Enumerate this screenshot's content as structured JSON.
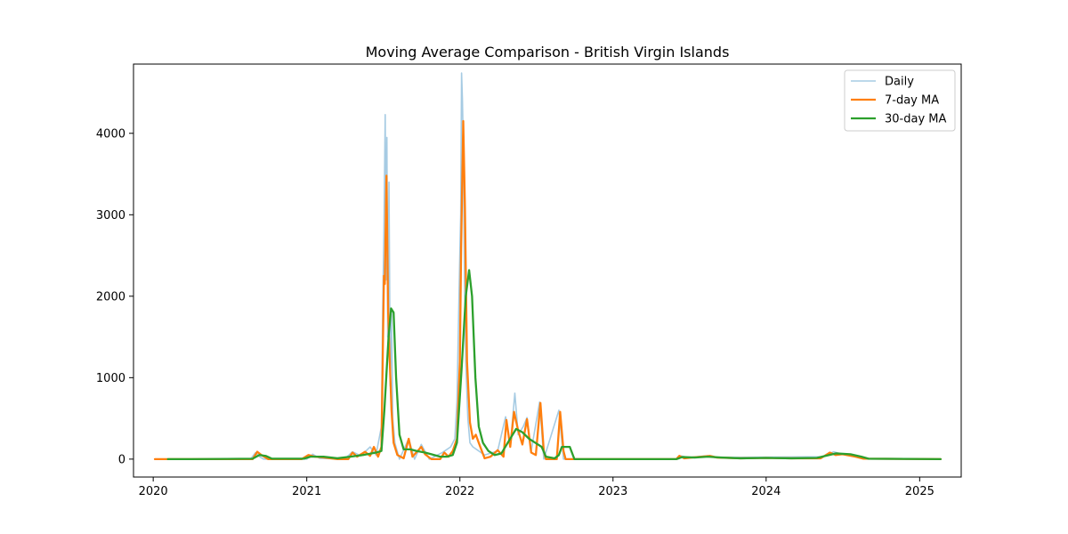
{
  "chart_data": {
    "type": "line",
    "title": "Moving Average Comparison - British Virgin Islands",
    "xlabel": "",
    "ylabel": "",
    "xlim": [
      "2019-11-15",
      "2025-04-10"
    ],
    "ylim": [
      -220,
      4850
    ],
    "x_ticks": [
      "2020-01-01",
      "2021-01-01",
      "2022-01-01",
      "2023-01-01",
      "2024-01-01",
      "2025-01-01"
    ],
    "x_tick_labels": [
      "2020",
      "2021",
      "2022",
      "2023",
      "2024",
      "2025"
    ],
    "y_ticks": [
      0,
      1000,
      2000,
      3000,
      4000
    ],
    "legend_position": "top-right",
    "grid": false,
    "series": [
      {
        "name": "Daily",
        "color": "#a6cbe3",
        "points": [
          [
            "2020-01-05",
            0
          ],
          [
            "2020-08-20",
            0
          ],
          [
            "2020-09-01",
            80
          ],
          [
            "2020-09-10",
            30
          ],
          [
            "2020-09-20",
            0
          ],
          [
            "2021-01-01",
            0
          ],
          [
            "2021-01-15",
            60
          ],
          [
            "2021-02-01",
            10
          ],
          [
            "2021-04-01",
            0
          ],
          [
            "2021-04-20",
            90
          ],
          [
            "2021-05-10",
            40
          ],
          [
            "2021-06-01",
            150
          ],
          [
            "2021-06-15",
            50
          ],
          [
            "2021-06-28",
            400
          ],
          [
            "2021-07-01",
            1850
          ],
          [
            "2021-07-04",
            2800
          ],
          [
            "2021-07-07",
            4230
          ],
          [
            "2021-07-09",
            2200
          ],
          [
            "2021-07-11",
            3950
          ],
          [
            "2021-07-13",
            1500
          ],
          [
            "2021-07-16",
            3400
          ],
          [
            "2021-07-19",
            900
          ],
          [
            "2021-07-22",
            1800
          ],
          [
            "2021-07-25",
            500
          ],
          [
            "2021-07-30",
            200
          ],
          [
            "2021-08-10",
            0
          ],
          [
            "2021-09-01",
            250
          ],
          [
            "2021-09-15",
            0
          ],
          [
            "2021-10-01",
            180
          ],
          [
            "2021-10-20",
            0
          ],
          [
            "2021-11-20",
            80
          ],
          [
            "2021-12-10",
            150
          ],
          [
            "2021-12-20",
            250
          ],
          [
            "2021-12-25",
            700
          ],
          [
            "2022-01-01",
            2550
          ],
          [
            "2022-01-03",
            3000
          ],
          [
            "2022-01-05",
            4740
          ],
          [
            "2022-01-07",
            4420
          ],
          [
            "2022-01-09",
            3900
          ],
          [
            "2022-01-12",
            2200
          ],
          [
            "2022-01-15",
            1200
          ],
          [
            "2022-01-20",
            500
          ],
          [
            "2022-01-25",
            200
          ],
          [
            "2022-02-01",
            150
          ],
          [
            "2022-03-01",
            50
          ],
          [
            "2022-04-01",
            100
          ],
          [
            "2022-04-20",
            520
          ],
          [
            "2022-05-01",
            150
          ],
          [
            "2022-05-12",
            810
          ],
          [
            "2022-05-20",
            300
          ],
          [
            "2022-06-01",
            400
          ],
          [
            "2022-06-10",
            510
          ],
          [
            "2022-06-20",
            100
          ],
          [
            "2022-07-10",
            700
          ],
          [
            "2022-07-20",
            0
          ],
          [
            "2022-08-25",
            600
          ],
          [
            "2022-09-05",
            0
          ],
          [
            "2023-06-05",
            0
          ],
          [
            "2023-06-10",
            40
          ],
          [
            "2023-07-01",
            20
          ],
          [
            "2023-08-15",
            40
          ],
          [
            "2023-09-01",
            20
          ],
          [
            "2024-05-15",
            30
          ],
          [
            "2024-06-10",
            90
          ],
          [
            "2024-07-01",
            60
          ],
          [
            "2024-08-15",
            20
          ],
          [
            "2024-09-01",
            0
          ],
          [
            "2025-02-20",
            0
          ]
        ]
      },
      {
        "name": "7-day MA",
        "color": "#ff7f0e",
        "points": [
          [
            "2020-01-05",
            0
          ],
          [
            "2020-08-25",
            0
          ],
          [
            "2020-09-05",
            90
          ],
          [
            "2020-09-15",
            50
          ],
          [
            "2020-10-01",
            0
          ],
          [
            "2020-12-20",
            0
          ],
          [
            "2021-01-05",
            50
          ],
          [
            "2021-01-20",
            30
          ],
          [
            "2021-02-10",
            20
          ],
          [
            "2021-03-15",
            0
          ],
          [
            "2021-04-10",
            0
          ],
          [
            "2021-04-20",
            80
          ],
          [
            "2021-05-01",
            30
          ],
          [
            "2021-05-20",
            90
          ],
          [
            "2021-06-01",
            40
          ],
          [
            "2021-06-10",
            150
          ],
          [
            "2021-06-20",
            30
          ],
          [
            "2021-06-28",
            150
          ],
          [
            "2021-07-04",
            2250
          ],
          [
            "2021-07-06",
            2150
          ],
          [
            "2021-07-10",
            3480
          ],
          [
            "2021-07-14",
            1800
          ],
          [
            "2021-07-18",
            1180
          ],
          [
            "2021-07-22",
            600
          ],
          [
            "2021-07-27",
            200
          ],
          [
            "2021-08-05",
            50
          ],
          [
            "2021-08-20",
            10
          ],
          [
            "2021-09-01",
            250
          ],
          [
            "2021-09-10",
            30
          ],
          [
            "2021-10-01",
            150
          ],
          [
            "2021-10-10",
            60
          ],
          [
            "2021-10-25",
            0
          ],
          [
            "2021-11-15",
            0
          ],
          [
            "2021-11-25",
            80
          ],
          [
            "2021-12-05",
            30
          ],
          [
            "2021-12-15",
            100
          ],
          [
            "2021-12-25",
            250
          ],
          [
            "2022-01-01",
            1200
          ],
          [
            "2022-01-04",
            2600
          ],
          [
            "2022-01-09",
            4150
          ],
          [
            "2022-01-13",
            3100
          ],
          [
            "2022-01-18",
            1200
          ],
          [
            "2022-01-25",
            450
          ],
          [
            "2022-02-01",
            250
          ],
          [
            "2022-02-08",
            300
          ],
          [
            "2022-02-15",
            200
          ],
          [
            "2022-03-01",
            10
          ],
          [
            "2022-03-15",
            30
          ],
          [
            "2022-04-01",
            110
          ],
          [
            "2022-04-15",
            30
          ],
          [
            "2022-04-22",
            480
          ],
          [
            "2022-05-01",
            150
          ],
          [
            "2022-05-10",
            580
          ],
          [
            "2022-05-20",
            350
          ],
          [
            "2022-05-30",
            180
          ],
          [
            "2022-06-10",
            490
          ],
          [
            "2022-06-20",
            80
          ],
          [
            "2022-07-01",
            50
          ],
          [
            "2022-07-12",
            690
          ],
          [
            "2022-07-20",
            100
          ],
          [
            "2022-07-25",
            0
          ],
          [
            "2022-08-20",
            0
          ],
          [
            "2022-08-28",
            580
          ],
          [
            "2022-09-05",
            100
          ],
          [
            "2022-09-10",
            0
          ],
          [
            "2023-06-01",
            0
          ],
          [
            "2023-06-08",
            40
          ],
          [
            "2023-06-20",
            10
          ],
          [
            "2023-07-10",
            20
          ],
          [
            "2023-08-20",
            40
          ],
          [
            "2023-09-05",
            20
          ],
          [
            "2023-11-01",
            10
          ],
          [
            "2024-01-01",
            15
          ],
          [
            "2024-03-01",
            10
          ],
          [
            "2024-05-10",
            10
          ],
          [
            "2024-06-01",
            80
          ],
          [
            "2024-06-15",
            50
          ],
          [
            "2024-07-01",
            60
          ],
          [
            "2024-08-01",
            30
          ],
          [
            "2024-08-20",
            5
          ],
          [
            "2025-02-20",
            0
          ]
        ]
      },
      {
        "name": "30-day MA",
        "color": "#2ca02c",
        "points": [
          [
            "2020-02-05",
            0
          ],
          [
            "2020-04-01",
            0
          ],
          [
            "2020-08-25",
            5
          ],
          [
            "2020-09-10",
            50
          ],
          [
            "2020-09-25",
            40
          ],
          [
            "2020-10-10",
            5
          ],
          [
            "2020-12-25",
            5
          ],
          [
            "2021-01-10",
            30
          ],
          [
            "2021-02-10",
            30
          ],
          [
            "2021-03-15",
            10
          ],
          [
            "2021-04-15",
            30
          ],
          [
            "2021-05-15",
            50
          ],
          [
            "2021-06-15",
            80
          ],
          [
            "2021-06-28",
            100
          ],
          [
            "2021-07-05",
            600
          ],
          [
            "2021-07-15",
            1500
          ],
          [
            "2021-07-21",
            1850
          ],
          [
            "2021-07-27",
            1800
          ],
          [
            "2021-08-02",
            1000
          ],
          [
            "2021-08-10",
            300
          ],
          [
            "2021-08-20",
            120
          ],
          [
            "2021-09-05",
            120
          ],
          [
            "2021-09-20",
            100
          ],
          [
            "2021-10-10",
            80
          ],
          [
            "2021-10-25",
            60
          ],
          [
            "2021-11-15",
            30
          ],
          [
            "2021-12-01",
            30
          ],
          [
            "2021-12-15",
            50
          ],
          [
            "2021-12-25",
            200
          ],
          [
            "2022-01-05",
            1100
          ],
          [
            "2022-01-15",
            2000
          ],
          [
            "2022-01-23",
            2320
          ],
          [
            "2022-01-30",
            2000
          ],
          [
            "2022-02-07",
            1000
          ],
          [
            "2022-02-15",
            400
          ],
          [
            "2022-02-25",
            200
          ],
          [
            "2022-03-10",
            100
          ],
          [
            "2022-03-25",
            50
          ],
          [
            "2022-04-10",
            70
          ],
          [
            "2022-04-25",
            200
          ],
          [
            "2022-05-15",
            370
          ],
          [
            "2022-05-30",
            330
          ],
          [
            "2022-06-15",
            250
          ],
          [
            "2022-06-30",
            200
          ],
          [
            "2022-07-15",
            150
          ],
          [
            "2022-07-25",
            30
          ],
          [
            "2022-08-15",
            10
          ],
          [
            "2022-08-25",
            50
          ],
          [
            "2022-09-01",
            150
          ],
          [
            "2022-09-20",
            150
          ],
          [
            "2022-10-01",
            0
          ],
          [
            "2023-06-01",
            0
          ],
          [
            "2023-06-15",
            25
          ],
          [
            "2023-07-15",
            20
          ],
          [
            "2023-08-15",
            30
          ],
          [
            "2023-09-15",
            20
          ],
          [
            "2023-11-01",
            10
          ],
          [
            "2024-01-01",
            15
          ],
          [
            "2024-03-01",
            10
          ],
          [
            "2024-05-01",
            15
          ],
          [
            "2024-06-15",
            70
          ],
          [
            "2024-07-20",
            60
          ],
          [
            "2024-08-15",
            30
          ],
          [
            "2024-09-01",
            5
          ],
          [
            "2025-02-20",
            0
          ]
        ]
      }
    ]
  }
}
